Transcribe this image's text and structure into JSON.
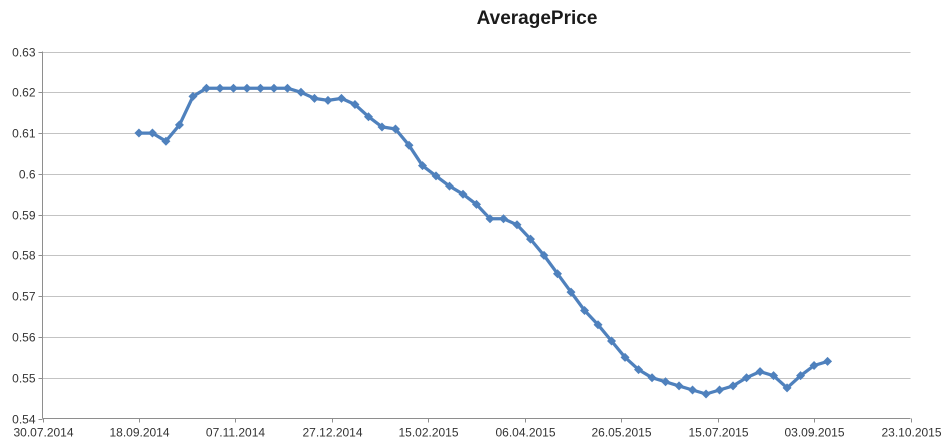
{
  "chart_data": {
    "type": "line",
    "title": "AveragePrice",
    "xlabel": "",
    "ylabel": "",
    "ylim": [
      0.54,
      0.63
    ],
    "y_tick_step": 0.01,
    "y_tick_labels": [
      "0.54",
      "0.55",
      "0.56",
      "0.57",
      "0.58",
      "0.59",
      "0.6",
      "0.61",
      "0.62",
      "0.63"
    ],
    "x_tick_labels": [
      "30.07.2014",
      "18.09.2014",
      "07.11.2014",
      "27.12.2014",
      "15.02.2015",
      "06.04.2015",
      "26.05.2015",
      "15.07.2015",
      "03.09.2015",
      "23.10.2015"
    ],
    "x_range": [
      "30.07.2014",
      "23.10.2015"
    ],
    "grid": "horizontal",
    "legend": "none",
    "marker": "diamond",
    "series": [
      {
        "name": "AveragePrice",
        "color": "#4F81BD",
        "x": [
          "18.09.2014",
          "25.09.2014",
          "02.10.2014",
          "09.10.2014",
          "16.10.2014",
          "23.10.2014",
          "30.10.2014",
          "06.11.2014",
          "13.11.2014",
          "20.11.2014",
          "27.11.2014",
          "04.12.2014",
          "11.12.2014",
          "18.12.2014",
          "25.12.2014",
          "01.01.2015",
          "08.01.2015",
          "15.01.2015",
          "22.01.2015",
          "29.01.2015",
          "05.02.2015",
          "12.02.2015",
          "19.02.2015",
          "26.02.2015",
          "05.03.2015",
          "12.03.2015",
          "19.03.2015",
          "26.03.2015",
          "02.04.2015",
          "09.04.2015",
          "16.04.2015",
          "23.04.2015",
          "30.04.2015",
          "07.05.2015",
          "14.05.2015",
          "21.05.2015",
          "28.05.2015",
          "04.06.2015",
          "11.06.2015",
          "18.06.2015",
          "25.06.2015",
          "02.07.2015",
          "09.07.2015",
          "16.07.2015",
          "23.07.2015",
          "30.07.2015",
          "06.08.2015",
          "13.08.2015",
          "20.08.2015",
          "27.08.2015",
          "03.09.2015",
          "10.09.2015"
        ],
        "values": [
          0.61,
          0.61,
          0.608,
          0.612,
          0.619,
          0.621,
          0.621,
          0.621,
          0.621,
          0.621,
          0.621,
          0.621,
          0.62,
          0.6185,
          0.618,
          0.6185,
          0.617,
          0.614,
          0.6115,
          0.611,
          0.607,
          0.602,
          0.5995,
          0.597,
          0.595,
          0.5925,
          0.589,
          0.589,
          0.5875,
          0.584,
          0.58,
          0.5755,
          0.571,
          0.5665,
          0.563,
          0.559,
          0.555,
          0.552,
          0.55,
          0.549,
          0.548,
          0.547,
          0.546,
          0.547,
          0.548,
          0.55,
          0.5515,
          0.5505,
          0.5475,
          0.5505,
          0.553,
          0.554
        ]
      }
    ],
    "colors": {
      "series": "#4F81BD",
      "gridline": "#C3C3C3",
      "axis": "#8E8E8E",
      "tick_label": "#333333",
      "title": "#1a1a1a",
      "background": "#FFFFFF"
    }
  }
}
